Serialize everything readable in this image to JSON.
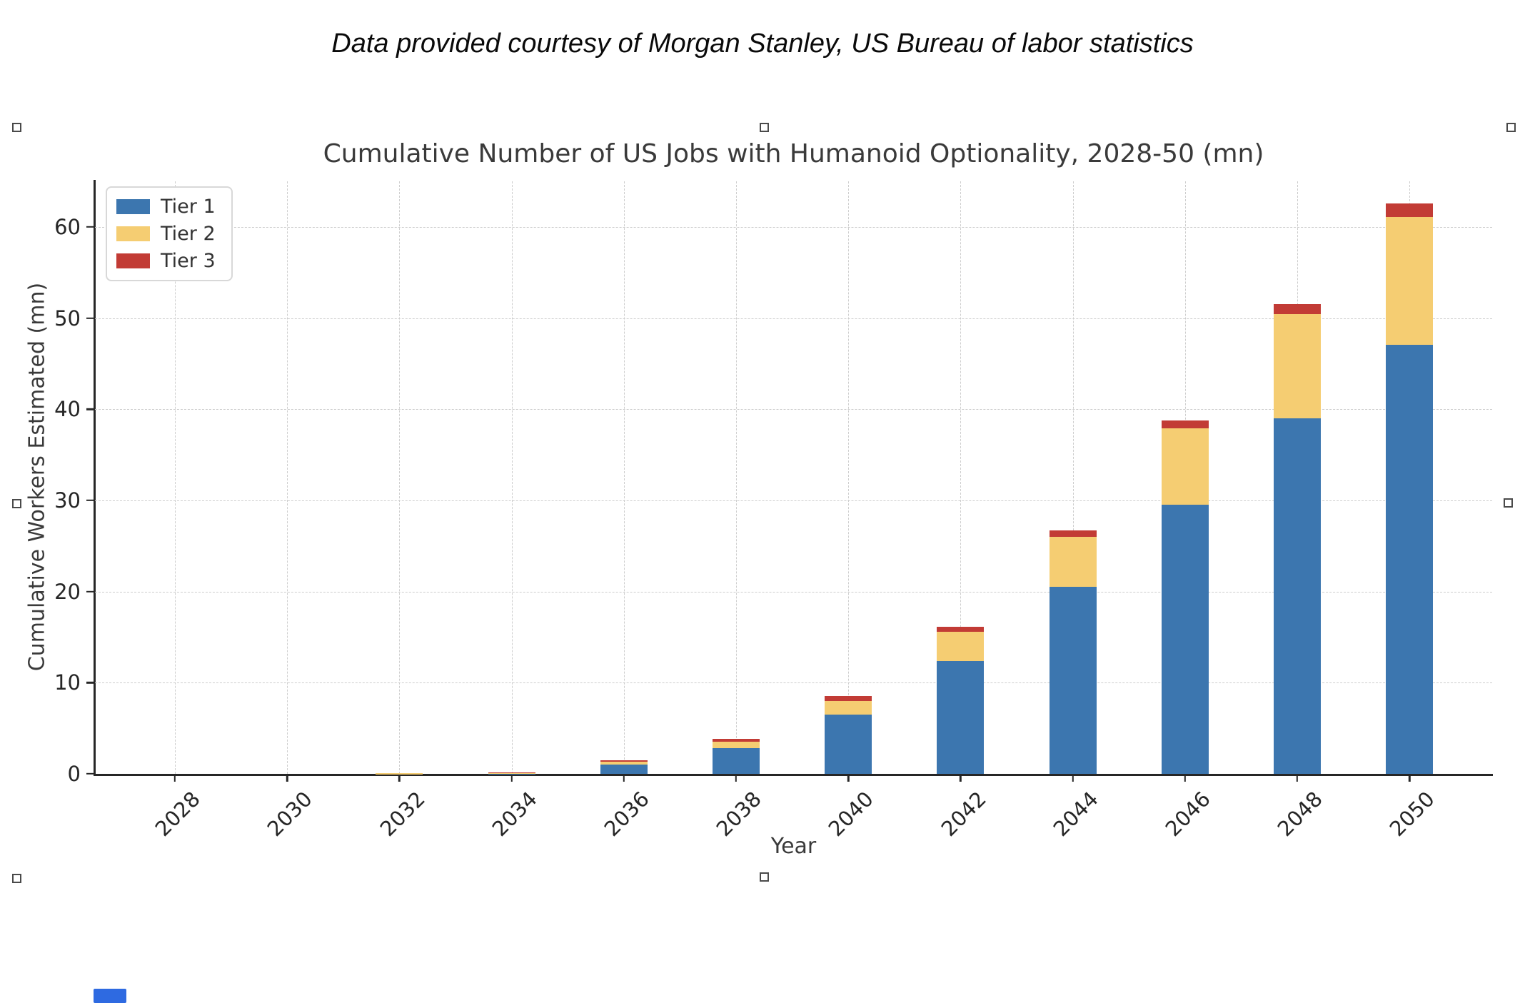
{
  "header": {
    "note": "Data provided courtesy of Morgan Stanley, US Bureau of labor statistics"
  },
  "chart_data": {
    "type": "bar",
    "stacked": true,
    "title": "Cumulative Number of US Jobs with Humanoid Optionality, 2028-50 (mn)",
    "xlabel": "Year",
    "ylabel": "Cumulative Workers Estimated (mn)",
    "categories": [
      "2028",
      "2030",
      "2032",
      "2034",
      "2036",
      "2038",
      "2040",
      "2042",
      "2044",
      "2046",
      "2048",
      "2050"
    ],
    "series": [
      {
        "name": "Tier 1",
        "color": "#3c76af",
        "values": [
          0,
          0,
          0.01,
          0.05,
          1.0,
          2.8,
          6.5,
          12.4,
          20.5,
          29.5,
          39.0,
          47.1
        ]
      },
      {
        "name": "Tier 2",
        "color": "#f5cd72",
        "values": [
          0,
          0,
          0.03,
          0.1,
          0.3,
          0.7,
          1.5,
          3.2,
          5.5,
          8.4,
          11.4,
          14.0
        ]
      },
      {
        "name": "Tier 3",
        "color": "#c23b35",
        "values": [
          0,
          0,
          0.0,
          0.02,
          0.15,
          0.3,
          0.5,
          0.5,
          0.7,
          0.9,
          1.1,
          1.5
        ]
      }
    ],
    "totals": [
      0,
      0,
      0.04,
      0.17,
      1.45,
      3.8,
      8.5,
      16.1,
      26.7,
      38.8,
      51.5,
      62.6
    ],
    "yticks": [
      0,
      10,
      20,
      30,
      40,
      50,
      60
    ],
    "ylim": [
      0,
      65
    ],
    "grid": true,
    "grid_style": "dashed",
    "legend_position": "upper left",
    "x_tick_rotation": 45
  },
  "colors": {
    "tier1": "#3c76af",
    "tier2": "#f5cd72",
    "tier3": "#c23b35",
    "axis": "#262626",
    "grid": "#cdcdcd",
    "title_text": "#3a3a3a",
    "note_text": "#0a0a0a",
    "legend_border": "#d8d8d8",
    "handle_border": "#4a4a4a",
    "blue_marker": "#2e6ae1",
    "background": "#ffffff"
  }
}
